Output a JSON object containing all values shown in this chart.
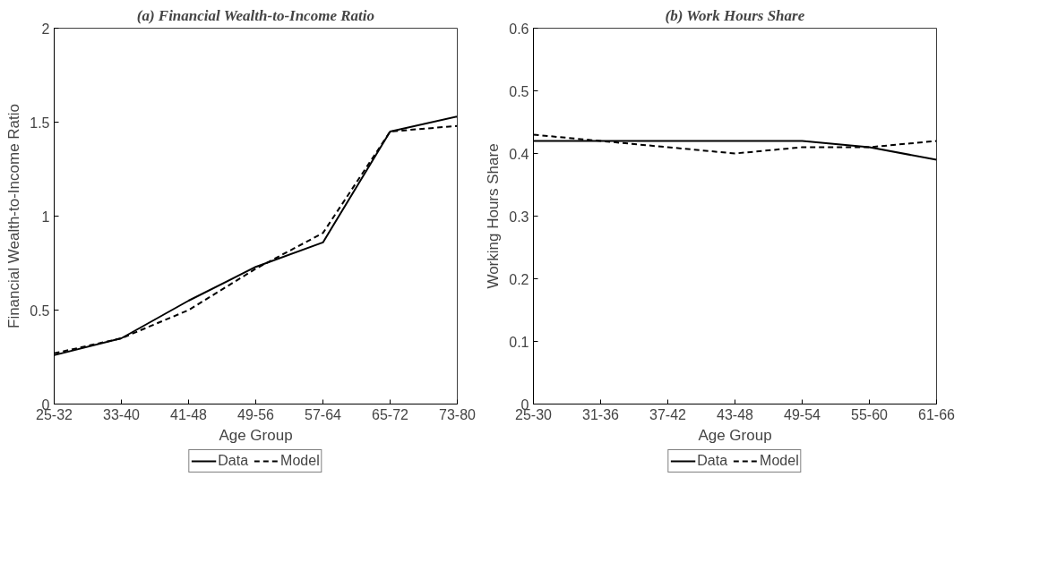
{
  "chart_data": [
    {
      "type": "line",
      "title": "(a) Financial Wealth-to-Income Ratio",
      "xlabel": "Age Group",
      "ylabel": "Financial Wealth-to-Income Ratio",
      "categories": [
        "25-32",
        "33-40",
        "41-48",
        "49-56",
        "57-64",
        "65-72",
        "73-80"
      ],
      "ylim": [
        0,
        2
      ],
      "yticks": [
        0,
        0.5,
        1,
        1.5,
        2
      ],
      "legend": "bottom",
      "grid": false,
      "series": [
        {
          "name": "Data",
          "color": "#000000",
          "line_style": "solid",
          "values": [
            0.26,
            0.35,
            0.55,
            0.73,
            0.86,
            1.45,
            1.53
          ]
        },
        {
          "name": "Model",
          "color": "#000000",
          "line_style": "dashed",
          "values": [
            0.27,
            0.35,
            0.5,
            0.72,
            0.91,
            1.45,
            1.48
          ]
        }
      ]
    },
    {
      "type": "line",
      "title": "(b) Work Hours Share",
      "xlabel": "Age Group",
      "ylabel": "Working Hours Share",
      "categories": [
        "25-30",
        "31-36",
        "37-42",
        "43-48",
        "49-54",
        "55-60",
        "61-66"
      ],
      "ylim": [
        0,
        0.6
      ],
      "yticks": [
        0,
        0.1,
        0.2,
        0.3,
        0.4,
        0.5,
        0.6
      ],
      "legend": "bottom",
      "grid": false,
      "series": [
        {
          "name": "Data",
          "color": "#000000",
          "line_style": "solid",
          "values": [
            0.42,
            0.42,
            0.42,
            0.42,
            0.42,
            0.41,
            0.39
          ]
        },
        {
          "name": "Model",
          "color": "#000000",
          "line_style": "dashed",
          "values": [
            0.43,
            0.42,
            0.41,
            0.4,
            0.41,
            0.41,
            0.42
          ]
        }
      ]
    }
  ]
}
